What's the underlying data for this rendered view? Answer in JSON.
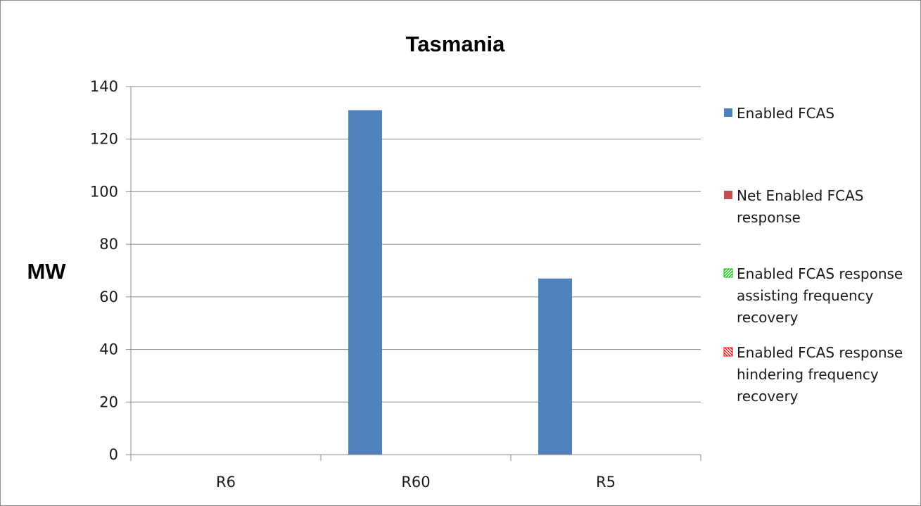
{
  "chart_data": {
    "type": "bar",
    "title": "Tasmania",
    "xlabel": "",
    "ylabel": "MW",
    "ylim": [
      0,
      140
    ],
    "yticks": [
      0,
      20,
      40,
      60,
      80,
      100,
      120,
      140
    ],
    "grid": true,
    "legend_position": "right",
    "categories": [
      "R6",
      "R60",
      "R5"
    ],
    "series": [
      {
        "name": "Enabled FCAS",
        "values": [
          0,
          131,
          67
        ],
        "color": "#4f81bd",
        "pattern": "solid"
      },
      {
        "name": "Net Enabled FCAS response",
        "values": [
          0,
          0,
          0
        ],
        "color": "#c0504d",
        "pattern": "solid"
      },
      {
        "name": "Enabled FCAS response assisting frequency recovery",
        "values": [
          0,
          0,
          0
        ],
        "color": "#00c000",
        "pattern": "hatch"
      },
      {
        "name": "Enabled FCAS response hindering frequency recovery",
        "values": [
          0,
          0,
          0
        ],
        "color": "#ff0000",
        "pattern": "hatch"
      }
    ]
  }
}
